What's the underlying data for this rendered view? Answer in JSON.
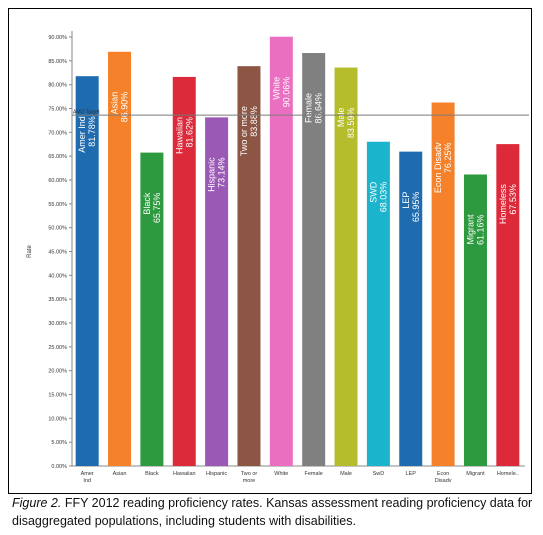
{
  "chart_data": {
    "type": "bar",
    "ylabel": "Rate",
    "ylim": [
      0,
      90
    ],
    "yticks": [
      "0.00%",
      "5.00%",
      "10.00%",
      "15.00%",
      "20.00%",
      "25.00%",
      "30.00%",
      "35.00%",
      "40.00%",
      "45.00%",
      "50.00%",
      "55.00%",
      "60.00%",
      "65.00%",
      "70.00%",
      "75.00%",
      "80.00%",
      "85.00%",
      "90.00%"
    ],
    "target": {
      "label": "AMO Target",
      "value": 73.6
    },
    "categories": [
      "Amer Ind",
      "Asian",
      "Black",
      "Hawaiian",
      "Hispanic",
      "Two or more",
      "White",
      "Female",
      "Male",
      "SWD",
      "LEP",
      "Econ Disadv",
      "Migrant",
      "Homeless"
    ],
    "bar_labels": [
      "Amer Ind",
      "Asian",
      "Black",
      "Hawaiian",
      "Hispanic",
      "Two or more",
      "White",
      "Female",
      "Male",
      "SWD",
      "LEP",
      "Econ Disadv",
      "Migrant",
      "Homeless"
    ],
    "value_labels": [
      "81.78%",
      "86.90%",
      "65.75%",
      "81.62%",
      "73.14%",
      "83.88%",
      "90.06%",
      "86.64%",
      "83.59%",
      "68.03%",
      "65.95%",
      "76.25%",
      "61.16%",
      "67.53%"
    ],
    "values": [
      81.78,
      86.9,
      65.75,
      81.62,
      73.14,
      83.88,
      90.06,
      86.64,
      83.59,
      68.03,
      65.95,
      76.25,
      61.16,
      67.53
    ],
    "xtick_labels": [
      "Amer\nInd",
      "Asian",
      "Black",
      "Hawaiian",
      "Hispanic",
      "Two or\nmore",
      "White",
      "Female",
      "Male",
      "SwD",
      "LEP",
      "Econ\nDisadv",
      "Migrant",
      "Homele.."
    ],
    "colors": [
      "#1f6bb0",
      "#f5822a",
      "#2e9a3f",
      "#dc2a3a",
      "#9b59b6",
      "#8c5544",
      "#ea6fc1",
      "#808080",
      "#b6bd2c",
      "#1ab4cc",
      "#1f6bb0",
      "#f5822a",
      "#2e9a3f",
      "#dc2a3a"
    ],
    "grid": false
  },
  "caption": {
    "figure": "Figure 2.",
    "text": " FFY 2012 reading proficiency rates. Kansas assessment reading proficiency data for disaggregated populations, including students with disabilities."
  }
}
